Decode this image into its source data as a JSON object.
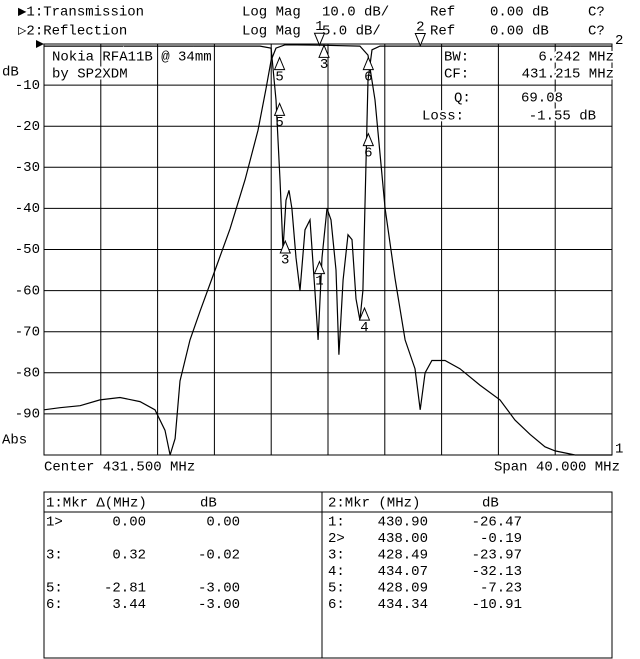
{
  "header": [
    {
      "name": "▶1:Transmission",
      "format": "Log Mag",
      "scale": "10.0 dB/",
      "ref": "Ref",
      "ref_value": "0.00 dB",
      "cal": "C?"
    },
    {
      "name": "▷2:Reflection",
      "format": "Log Mag",
      "scale": "5.0 dB/",
      "ref": "Ref",
      "ref_value": "0.00 dB",
      "cal": "C?"
    }
  ],
  "chart_data": {
    "type": "line",
    "y_unit": "dB",
    "format_label": "Abs",
    "annotations": [
      "Nokia RFA11B @ 34mm",
      "by SP2XDM"
    ],
    "readouts": [
      {
        "label": "BW:",
        "value": "6.242 MHz"
      },
      {
        "label": "CF:",
        "value": "431.215 MHz"
      },
      {
        "label": "Q:",
        "value": "69.08"
      },
      {
        "label": "Loss:",
        "value": "-1.55 dB"
      }
    ],
    "center": "Center 431.500 MHz",
    "span": "Span 40.000 MHz",
    "xlim": [
      411.5,
      451.5
    ],
    "ylim": [
      -100,
      0
    ],
    "yticks": [
      -10,
      -20,
      -30,
      -40,
      -50,
      -60,
      -70,
      -80,
      -90
    ],
    "y2lim": [
      -50,
      0
    ],
    "grid": true,
    "divisions": 10,
    "series": [
      {
        "name": "1",
        "color": "#000000",
        "x": [
          411.5,
          412.63,
          414.04,
          415.44,
          416.85,
          418.26,
          419.32,
          420.02,
          420.38,
          420.73,
          421.08,
          421.78,
          422.49,
          423.55,
          424.6,
          425.66,
          426.57,
          427.13,
          427.49,
          427.84,
          428.48,
          430.94,
          433.75,
          434.32,
          434.81,
          435.52,
          436.22,
          436.93,
          437.63,
          437.99,
          438.34,
          438.82,
          439.74,
          440.79,
          442.2,
          443.61,
          444.67,
          445.73,
          446.78,
          447.49,
          448.9,
          451.5
        ],
        "values": [
          -89,
          -88.5,
          -88,
          -86.6,
          -86,
          -87,
          -89,
          -94,
          -100,
          -96,
          -82,
          -72,
          -65,
          -55,
          -45,
          -33,
          -21,
          -11,
          -4,
          -1,
          -0.2,
          -0.3,
          -0.5,
          -2.7,
          -13.6,
          -40,
          -57,
          -72,
          -79,
          -89,
          -80,
          -77,
          -77,
          -79,
          -83,
          -86.6,
          -91.5,
          -95,
          -98,
          -99,
          -100,
          -100
        ]
      },
      {
        "name": "2",
        "color": "#000000",
        "axis": "y2",
        "x": [
          411.5,
          426.71,
          427.49,
          427.84,
          428.12,
          428.33,
          428.54,
          428.75,
          428.96,
          429.25,
          429.53,
          429.88,
          430.23,
          430.58,
          430.8,
          431.08,
          431.43,
          431.71,
          432.06,
          432.27,
          432.56,
          432.91,
          433.19,
          433.47,
          433.75,
          433.96,
          434.18,
          434.32,
          434.6,
          435.16,
          451.5
        ],
        "values": [
          -0.25,
          -0.25,
          -0.5,
          -6.8,
          -16.5,
          -25,
          -19,
          -17.8,
          -20,
          -26,
          -30,
          -22.6,
          -21.4,
          -30,
          -36,
          -26,
          -20,
          -21.4,
          -27.5,
          -37.8,
          -28.7,
          -23.2,
          -23.8,
          -31,
          -33.6,
          -30,
          -14,
          -4.4,
          -0.7,
          -0.25,
          -0.25
        ]
      }
    ],
    "markers": [
      {
        "label": "1",
        "series": 0,
        "x": 430.9,
        "value": -0.3,
        "active": true
      },
      {
        "label": "3",
        "series": 0,
        "x": 431.22,
        "value": -0.32
      },
      {
        "label": "5",
        "series": 0,
        "x": 428.09,
        "value": -3.3
      },
      {
        "label": "6",
        "series": 0,
        "x": 434.34,
        "value": -3.3
      },
      {
        "label": "1",
        "series": 1,
        "x": 430.9,
        "value": -26.47
      },
      {
        "label": "2",
        "series": 1,
        "x": 438.0,
        "value": -0.19,
        "active": true
      },
      {
        "label": "3",
        "series": 1,
        "x": 428.49,
        "value": -23.97
      },
      {
        "label": "4",
        "series": 1,
        "x": 434.07,
        "value": -32.13
      },
      {
        "label": "5",
        "series": 1,
        "x": 428.09,
        "value": -7.23
      },
      {
        "label": "6",
        "series": 1,
        "x": 434.34,
        "value": -10.91
      }
    ]
  },
  "marker_tables": [
    {
      "title": "1:Mkr Δ(MHz)",
      "unit": "dB",
      "rows": [
        [
          "1>",
          "0.00",
          "0.00"
        ],
        [
          "3:",
          "0.32",
          "-0.02"
        ],
        [
          "5:",
          "-2.81",
          "-3.00"
        ],
        [
          "6:",
          "3.44",
          "-3.00"
        ]
      ]
    },
    {
      "title": "2:Mkr (MHz)",
      "unit": "dB",
      "rows": [
        [
          "1:",
          "430.90",
          "-26.47"
        ],
        [
          "2>",
          "438.00",
          "-0.19"
        ],
        [
          "3:",
          "428.49",
          "-23.97"
        ],
        [
          "4:",
          "434.07",
          "-32.13"
        ],
        [
          "5:",
          "428.09",
          "-7.23"
        ],
        [
          "6:",
          "434.34",
          "-10.91"
        ]
      ]
    }
  ]
}
